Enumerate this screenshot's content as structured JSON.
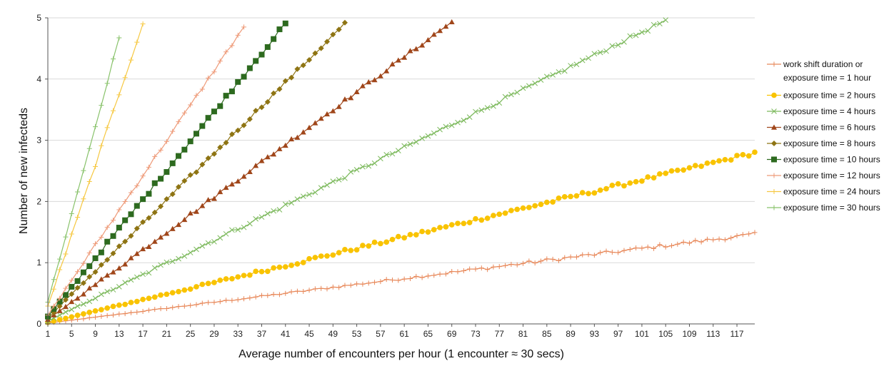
{
  "chart_data": {
    "type": "line",
    "xlabel": "Average number of encounters per hour (1 encounter ≈ 30 secs)",
    "ylabel": "Number of new infecteds",
    "xlim": [
      1,
      120
    ],
    "ylim": [
      0,
      5
    ],
    "x_ticks": [
      1,
      5,
      9,
      13,
      17,
      21,
      25,
      29,
      33,
      37,
      41,
      45,
      49,
      53,
      57,
      61,
      65,
      69,
      73,
      77,
      81,
      85,
      89,
      93,
      97,
      101,
      105,
      109,
      113,
      117
    ],
    "y_ticks": [
      0,
      1,
      2,
      3,
      4,
      5
    ],
    "grid": "horizontal",
    "legend_position": "right",
    "series": [
      {
        "name": "work shift duration or exposure time = 1 hour",
        "name_lines": [
          "work shift duration or",
          "exposure time = 1 hour"
        ],
        "color": "#E8895B",
        "marker": "plus",
        "slope": 0.0122
      },
      {
        "name": "exposure time = 2 hours",
        "color": "#F9C300",
        "marker": "circle",
        "slope": 0.0233
      },
      {
        "name": "exposure time = 4 hours",
        "color": "#7CB95C",
        "marker": "x",
        "slope": 0.0472
      },
      {
        "name": "exposure time = 6 hours",
        "color": "#A0461A",
        "marker": "triangle",
        "slope": 0.0715
      },
      {
        "name": "exposure time = 8 hours",
        "color": "#8E7413",
        "marker": "diamond",
        "slope": 0.0962
      },
      {
        "name": "exposure time = 10 hours",
        "color": "#2D6A1F",
        "marker": "square",
        "slope": 0.1196
      },
      {
        "name": "exposure time = 12 hours",
        "color": "#EE9A78",
        "marker": "plus",
        "slope": 0.1428
      },
      {
        "name": "exposure time = 24 hours",
        "color": "#F6C842",
        "marker": "plus",
        "slope": 0.2888
      },
      {
        "name": "exposure time = 30 hours",
        "color": "#88C26A",
        "marker": "plus",
        "slope": 0.3585
      }
    ]
  }
}
